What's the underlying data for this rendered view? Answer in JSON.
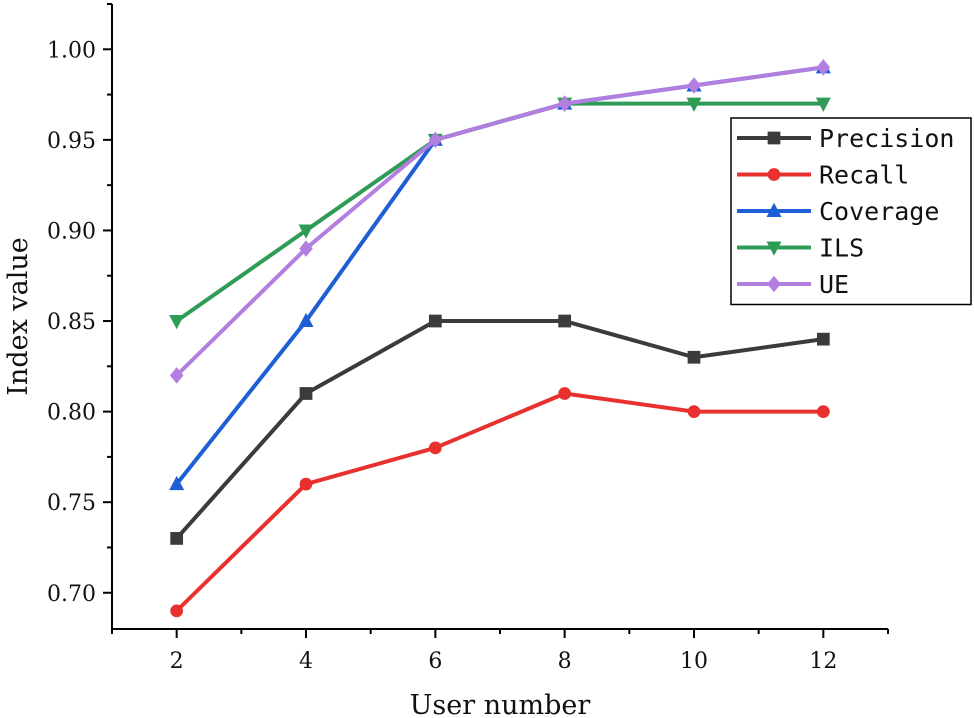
{
  "chart_data": {
    "type": "line",
    "title": "",
    "xlabel": "User number",
    "ylabel": "Index value",
    "x": [
      2,
      4,
      6,
      8,
      10,
      12
    ],
    "xlim": [
      1,
      13
    ],
    "ylim": [
      0.68,
      1.025
    ],
    "x_ticks": [
      2,
      4,
      6,
      8,
      10,
      12
    ],
    "y_ticks": [
      "0.70",
      "0.75",
      "0.80",
      "0.85",
      "0.90",
      "0.95",
      "1.00"
    ],
    "legend_position": "right",
    "grid": false,
    "series": [
      {
        "name": "Precision",
        "color": "#3b3b3b",
        "marker": "square",
        "values": [
          0.73,
          0.81,
          0.85,
          0.85,
          0.83,
          0.84
        ]
      },
      {
        "name": "Recall",
        "color": "#e8312f",
        "marker": "circle",
        "values": [
          0.69,
          0.76,
          0.78,
          0.81,
          0.8,
          0.8
        ]
      },
      {
        "name": "Coverage",
        "color": "#1f5fd6",
        "marker": "triangle-up",
        "values": [
          0.76,
          0.85,
          0.95,
          0.97,
          0.98,
          0.99
        ]
      },
      {
        "name": "ILS",
        "color": "#2e9b57",
        "marker": "triangle-down",
        "values": [
          0.85,
          0.9,
          0.95,
          0.97,
          0.97,
          0.97
        ]
      },
      {
        "name": "UE",
        "color": "#b27ee0",
        "marker": "diamond",
        "values": [
          0.82,
          0.89,
          0.95,
          0.97,
          0.98,
          0.99
        ]
      }
    ]
  }
}
